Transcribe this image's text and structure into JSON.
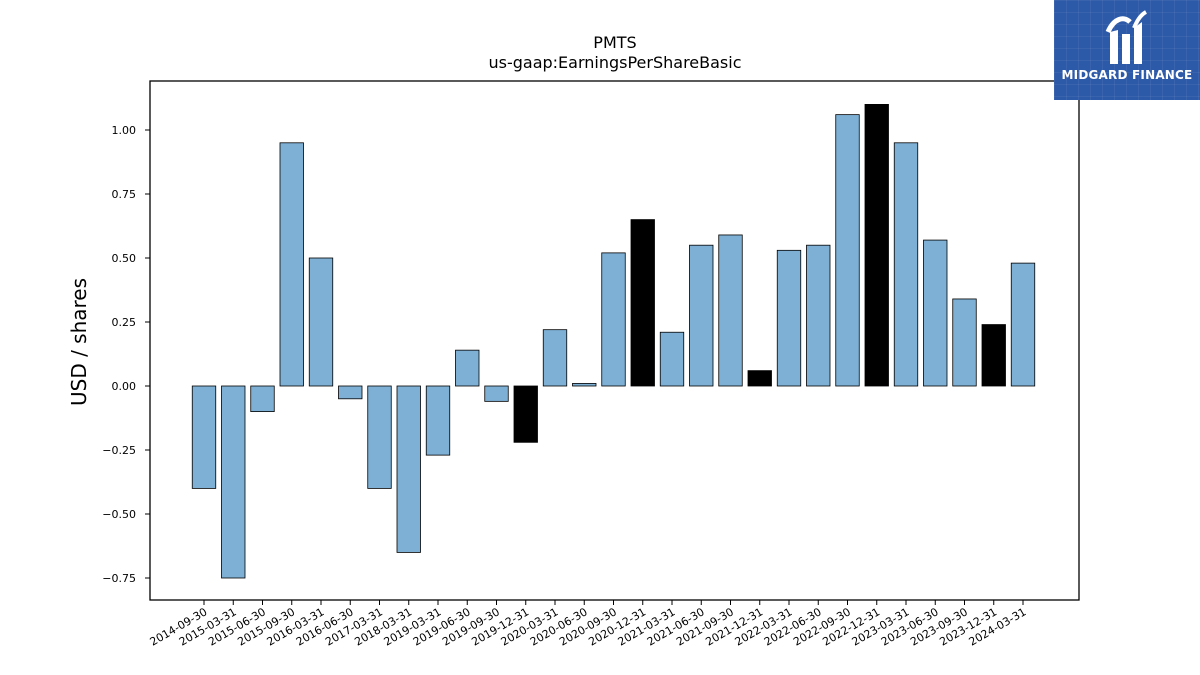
{
  "chart_data": {
    "type": "bar",
    "title": "PMTS",
    "subtitle": "us-gaap:EarningsPerShareBasic",
    "ylabel": "USD / shares",
    "xlabel": "",
    "ylim": [
      -0.84,
      1.19
    ],
    "yticks": [
      -0.75,
      -0.5,
      -0.25,
      0.0,
      0.25,
      0.5,
      0.75,
      1.0
    ],
    "ytick_labels": [
      "−0.75",
      "−0.50",
      "−0.25",
      "0.00",
      "0.25",
      "0.50",
      "0.75",
      "1.00"
    ],
    "grid": false,
    "colors": {
      "quarter": "#7eb0d5",
      "annual": "#000000",
      "edge": "#000000"
    },
    "categories": [
      "2014-09-30",
      "2015-03-31",
      "2015-06-30",
      "2015-09-30",
      "2016-03-31",
      "2016-06-30",
      "2017-03-31",
      "2018-03-31",
      "2019-03-31",
      "2019-06-30",
      "2019-09-30",
      "2019-12-31",
      "2020-03-31",
      "2020-06-30",
      "2020-09-30",
      "2020-12-31",
      "2021-03-31",
      "2021-06-30",
      "2021-09-30",
      "2021-12-31",
      "2022-03-31",
      "2022-06-30",
      "2022-09-30",
      "2022-12-31",
      "2023-03-31",
      "2023-06-30",
      "2023-09-30",
      "2023-12-31",
      "2024-03-31"
    ],
    "values": [
      -0.4,
      -0.75,
      -0.1,
      0.95,
      0.5,
      -0.05,
      -0.4,
      -0.65,
      -0.27,
      0.14,
      -0.06,
      -0.22,
      0.22,
      0.01,
      0.52,
      0.65,
      0.21,
      0.55,
      0.59,
      0.06,
      0.53,
      0.55,
      1.06,
      1.1,
      0.95,
      0.57,
      0.34,
      0.24,
      0.48
    ],
    "highlight": [
      false,
      false,
      false,
      false,
      false,
      false,
      false,
      false,
      false,
      false,
      false,
      true,
      false,
      false,
      false,
      true,
      false,
      false,
      false,
      true,
      false,
      false,
      false,
      true,
      false,
      false,
      false,
      true,
      false
    ]
  },
  "logo": {
    "text": "MIDGARD FINANCE",
    "mark": "midgard-logo-icon"
  }
}
